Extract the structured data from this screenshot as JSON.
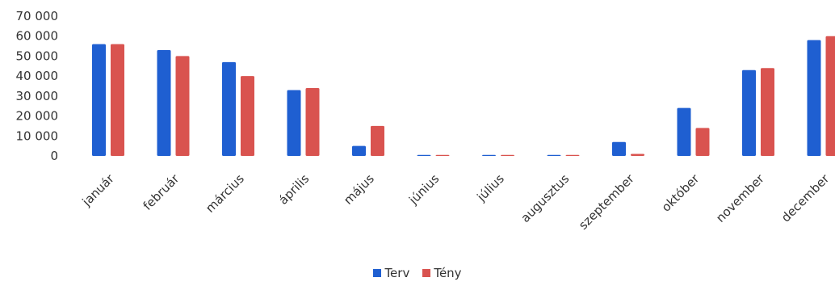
{
  "chart_data": {
    "type": "bar",
    "title": "",
    "xlabel": "",
    "ylabel": "",
    "ylim": [
      0,
      70000
    ],
    "y_ticks": [
      "0",
      "10 000",
      "20 000",
      "30 000",
      "40 000",
      "50 000",
      "60 000",
      "70 000"
    ],
    "grid": false,
    "legend_position": "bottom",
    "categories": [
      "január",
      "február",
      "március",
      "április",
      "május",
      "június",
      "július",
      "augusztus",
      "szeptember",
      "október",
      "november",
      "december"
    ],
    "series": [
      {
        "name": "Terv",
        "color": "#1f5fd1",
        "values": [
          56000,
          53000,
          47000,
          33000,
          5000,
          500,
          500,
          500,
          7000,
          24000,
          43000,
          58000
        ]
      },
      {
        "name": "Tény",
        "color": "#d9534f",
        "values": [
          56000,
          50000,
          40000,
          34000,
          15000,
          500,
          500,
          500,
          1000,
          14000,
          44000,
          60000
        ]
      }
    ]
  }
}
